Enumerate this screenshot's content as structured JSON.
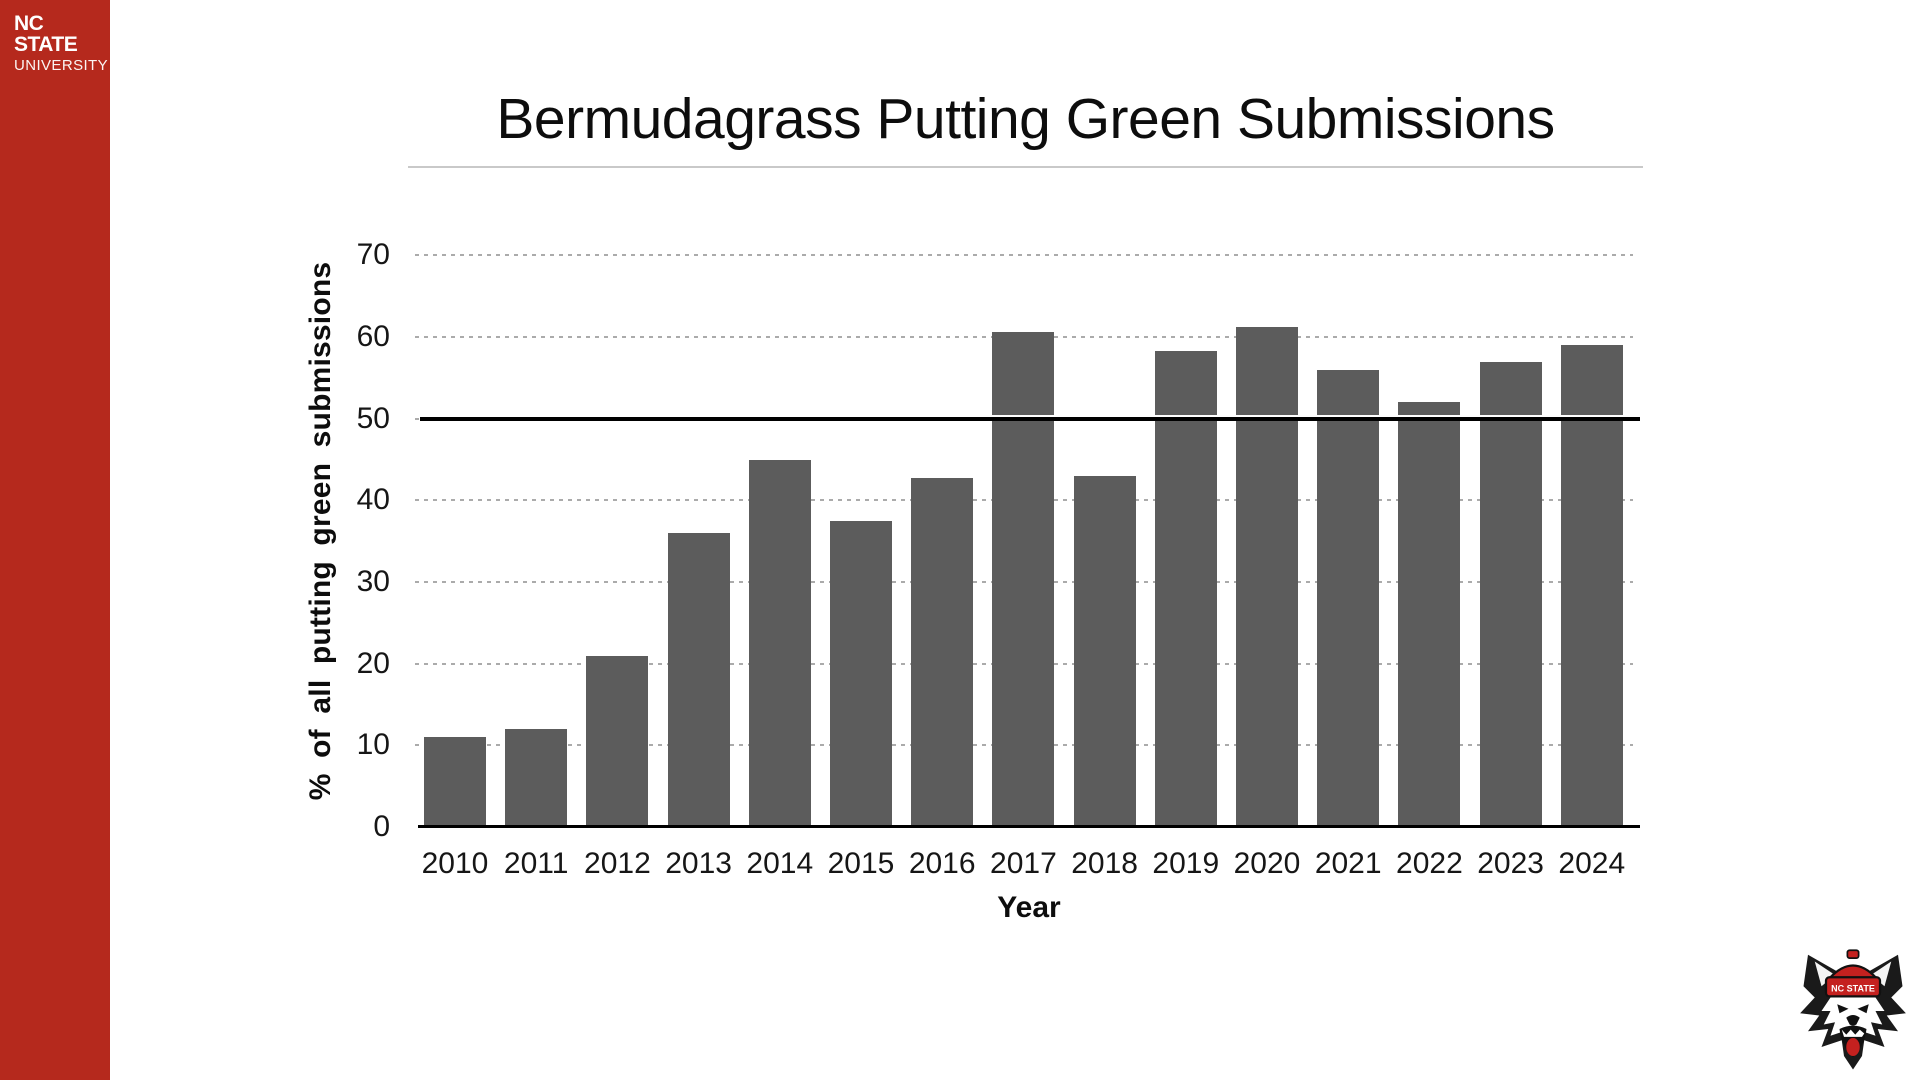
{
  "brand": {
    "wordmark_line1": "NC STATE",
    "wordmark_line2": "UNIVERSITY"
  },
  "slide": {
    "title": "Bermudagrass Putting Green Submissions"
  },
  "chart_data": {
    "type": "bar",
    "title": "Bermudagrass Putting Green Submissions",
    "xlabel": "Year",
    "ylabel": "% of all putting green submissions",
    "categories": [
      "2010",
      "2011",
      "2012",
      "2013",
      "2014",
      "2015",
      "2016",
      "2017",
      "2018",
      "2019",
      "2020",
      "2021",
      "2022",
      "2023",
      "2024"
    ],
    "values": [
      11,
      12,
      21,
      36,
      45,
      37.5,
      42.8,
      60.6,
      43,
      58.3,
      61.2,
      56,
      52,
      57,
      59
    ],
    "yticks": [
      0,
      10,
      20,
      30,
      40,
      50,
      60,
      70
    ],
    "ylim": [
      0,
      72.5
    ],
    "reference_line_y": 50,
    "grid": "horizontal-dotted",
    "legend": "none"
  },
  "wolf_logo": {
    "cap_text": "NC STATE"
  },
  "theme": {
    "sidebar_red": "#B5291D",
    "bar_gray": "#5C5C5C",
    "grid_gray": "#ABABAB",
    "divider_gray": "#C9C9C9",
    "reference_line_black": "#000000"
  }
}
